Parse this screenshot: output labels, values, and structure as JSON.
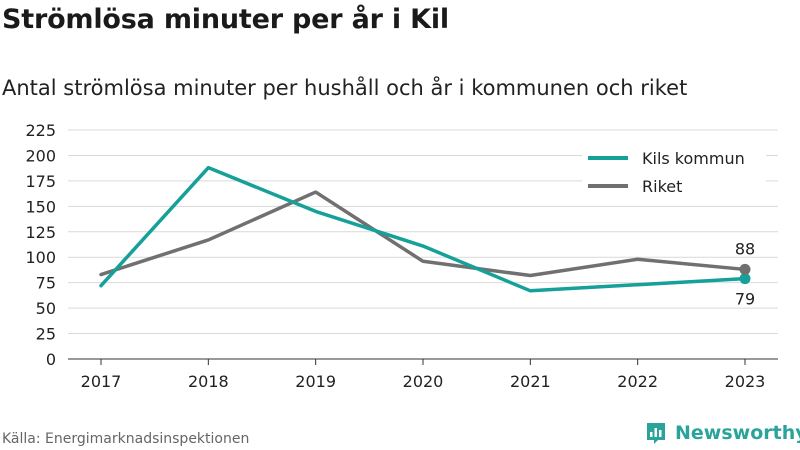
{
  "header": {
    "title": "Strömlösa minuter per år i Kil",
    "subtitle": "Antal strömlösa minuter per hushåll och år i kommunen och riket"
  },
  "footer": {
    "source": "Källa: Energimarknadsinspektionen",
    "brand": "Newsworthy",
    "brand_icon": "bar-chart-icon"
  },
  "colors": {
    "kommun": "#16a09a",
    "riket": "#707070",
    "grid": "#d9d9d9"
  },
  "chart_data": {
    "type": "line",
    "x": [
      "2017",
      "2018",
      "2019",
      "2020",
      "2021",
      "2022",
      "2023"
    ],
    "ylim": [
      0,
      225
    ],
    "yticks": [
      0,
      25,
      50,
      75,
      100,
      125,
      150,
      175,
      200,
      225
    ],
    "grid": true,
    "legend_position": "top-right",
    "series": [
      {
        "name": "Kils kommun",
        "values": [
          72,
          188,
          145,
          111,
          67,
          73,
          79
        ],
        "end_label": "79"
      },
      {
        "name": "Riket",
        "values": [
          83,
          117,
          164,
          96,
          82,
          98,
          88
        ],
        "end_label": "88"
      }
    ]
  }
}
